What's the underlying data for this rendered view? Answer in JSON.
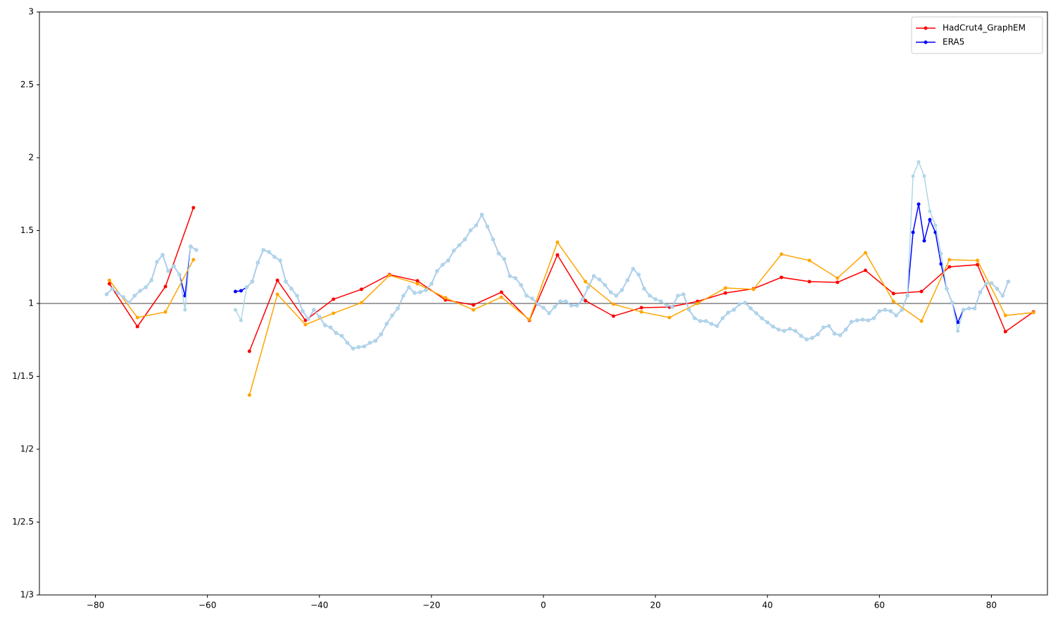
{
  "chart_data": {
    "type": "line",
    "yscale": "ratio",
    "xlim": [
      -90,
      90
    ],
    "ylim": [
      0.333333,
      3
    ],
    "xticks": [
      {
        "value": -80,
        "label": "−80"
      },
      {
        "value": -60,
        "label": "−60"
      },
      {
        "value": -40,
        "label": "−40"
      },
      {
        "value": -20,
        "label": "−20"
      },
      0,
      20,
      40,
      60,
      80
    ],
    "yticks": [
      {
        "value": 0.333333,
        "label": "1/3"
      },
      {
        "value": 0.4,
        "label": "1/2.5"
      },
      {
        "value": 0.5,
        "label": "1/2"
      },
      {
        "value": 0.666667,
        "label": "1/1.5"
      },
      1,
      1.5,
      2,
      2.5,
      3
    ],
    "hline": 1,
    "hline_color": "#808080",
    "legend": "upper right",
    "series": [
      {
        "name": "HadCrut4_GraphEM",
        "color": "#ff0000",
        "x": [
          -77.5,
          -72.5,
          -67.5,
          -62.5,
          -57.5,
          -52.5,
          -47.5,
          -42.5,
          -37.5,
          -32.5,
          -27.5,
          -22.5,
          -17.5,
          -12.5,
          -7.5,
          -2.5,
          2.5,
          7.5,
          12.5,
          17.5,
          22.5,
          27.5,
          32.5,
          37.5,
          42.5,
          47.5,
          52.5,
          57.5,
          62.5,
          67.5,
          72.5,
          77.5,
          82.5,
          87.5
        ],
        "values": [
          1.135,
          0.863,
          1.116,
          1.657,
          null,
          0.753,
          1.159,
          0.896,
          1.029,
          1.097,
          1.198,
          1.155,
          1.024,
          0.99,
          1.077,
          0.896,
          1.333,
          1.019,
          0.92,
          0.972,
          0.976,
          1.014,
          1.072,
          1.101,
          1.179,
          1.15,
          1.145,
          1.227,
          1.068,
          1.082,
          1.251,
          1.266,
          0.838,
          0.945
        ]
      },
      {
        "name": "ERA5",
        "color": "#0000ff",
        "x": [
          -78,
          -77,
          -76,
          -75,
          -74,
          -73,
          -72,
          -71,
          -70,
          -69,
          -68,
          -67,
          -66,
          -65,
          -64,
          -63,
          -62,
          -58,
          -55,
          -54,
          -53,
          -52,
          -51,
          -50,
          -49,
          -48,
          -47,
          -46,
          -45,
          -44,
          -43,
          -42,
          -41,
          -40,
          -39,
          -38,
          -37,
          -36,
          -35,
          -34,
          -33,
          -32,
          -31,
          -30,
          -29,
          -28,
          -27,
          -26,
          -25,
          -24,
          -23,
          -22,
          -21,
          -20,
          -19,
          -18,
          -17,
          -16,
          -15,
          -14,
          -13,
          -12,
          -11,
          -10,
          -9,
          -8,
          -7,
          -6,
          -5,
          -4,
          -3,
          -2,
          -1,
          0,
          1,
          2,
          3,
          4,
          5,
          6,
          7,
          8,
          9,
          10,
          11,
          12,
          13,
          14,
          15,
          16,
          17,
          18,
          19,
          20,
          21,
          22,
          23,
          24,
          25,
          26,
          27,
          28,
          29,
          30,
          31,
          32,
          33,
          34,
          35,
          36,
          37,
          38,
          39,
          40,
          41,
          42,
          43,
          44,
          45,
          46,
          47,
          48,
          49,
          50,
          51,
          52,
          53,
          54,
          55,
          56,
          57,
          58,
          59,
          60,
          61,
          62,
          63,
          64,
          65,
          66,
          67,
          68,
          69,
          70,
          71,
          72,
          73,
          74,
          75,
          76,
          77,
          78,
          79,
          80,
          81,
          82,
          83
        ],
        "values": [
          1.063,
          1.101,
          1.072,
          1.043,
          1.005,
          1.053,
          1.087,
          1.111,
          1.159,
          1.285,
          1.333,
          1.222,
          1.256,
          1.198,
          1.053,
          1.391,
          1.367,
          null,
          1.082,
          1.087,
          1.111,
          1.15,
          1.28,
          1.367,
          1.353,
          1.319,
          1.295,
          1.15,
          1.101,
          1.053,
          0.95,
          0.904,
          0.958,
          0.916,
          0.87,
          0.859,
          0.831,
          0.818,
          0.787,
          0.764,
          0.77,
          0.772,
          0.787,
          0.796,
          0.825,
          0.877,
          0.924,
          0.967,
          1.053,
          1.111,
          1.072,
          1.077,
          1.092,
          1.135,
          1.222,
          1.266,
          1.295,
          1.362,
          1.401,
          1.44,
          1.502,
          1.536,
          1.609,
          1.527,
          1.44,
          1.343,
          1.304,
          1.188,
          1.174,
          1.126,
          1.053,
          1.034,
          0.995,
          0.972,
          0.937,
          0.976,
          1.014,
          1.014,
          0.986,
          0.986,
          1.029,
          1.111,
          1.188,
          1.164,
          1.126,
          1.077,
          1.053,
          1.092,
          1.159,
          1.237,
          1.198,
          1.101,
          1.053,
          1.029,
          1.014,
          0.986,
          0.976,
          1.053,
          1.063,
          0.958,
          0.908,
          0.892,
          0.892,
          0.877,
          0.866,
          0.908,
          0.941,
          0.958,
          0.995,
          1.005,
          0.967,
          0.937,
          0.908,
          0.885,
          0.863,
          0.848,
          0.841,
          0.852,
          0.841,
          0.818,
          0.802,
          0.809,
          0.825,
          0.859,
          0.866,
          0.828,
          0.821,
          0.848,
          0.888,
          0.896,
          0.9,
          0.896,
          0.908,
          0.95,
          0.958,
          0.95,
          0.924,
          0.958,
          1.053,
          1.488,
          1.681,
          1.43,
          1.575,
          1.488,
          1.271,
          1.101,
          1.005,
          0.885,
          0.958,
          0.967,
          0.967,
          1.077,
          1.135,
          1.14,
          1.101,
          1.053,
          1.15
        ]
      },
      {
        "color": "#ffa500",
        "x": [
          -77.5,
          -72.5,
          -67.5,
          -62.5,
          -57.5,
          -52.5,
          -47.5,
          -42.5,
          -37.5,
          -32.5,
          -27.5,
          -22.5,
          -17.5,
          -12.5,
          -7.5,
          -2.5,
          2.5,
          7.5,
          12.5,
          17.5,
          22.5,
          27.5,
          32.5,
          37.5,
          42.5,
          47.5,
          52.5,
          57.5,
          62.5,
          67.5,
          72.5,
          77.5,
          82.5,
          87.5
        ],
        "values": [
          1.159,
          0.912,
          0.945,
          1.3,
          null,
          0.614,
          1.063,
          0.873,
          0.937,
          1.005,
          1.193,
          1.135,
          1.039,
          0.958,
          1.043,
          0.9,
          1.42,
          1.15,
          0.995,
          0.945,
          0.912,
          1,
          1.106,
          1.097,
          1.338,
          1.295,
          1.174,
          1.348,
          1.014,
          0.892,
          1.3,
          1.295,
          0.924,
          0.941
        ]
      },
      {
        "color": "#add8e6",
        "x": [
          -78,
          -77,
          -76,
          -75,
          -74,
          -73,
          -72,
          -71,
          -70,
          -69,
          -68,
          -67,
          -66,
          -65,
          -64,
          -63,
          -62,
          -58,
          -55,
          -54,
          -53,
          -52,
          -51,
          -50,
          -49,
          -48,
          -47,
          -46,
          -45,
          -44,
          -43,
          -42,
          -41,
          -40,
          -39,
          -38,
          -37,
          -36,
          -35,
          -34,
          -33,
          -32,
          -31,
          -30,
          -29,
          -28,
          -27,
          -26,
          -25,
          -24,
          -23,
          -22,
          -21,
          -20,
          -19,
          -18,
          -17,
          -16,
          -15,
          -14,
          -13,
          -12,
          -11,
          -10,
          -9,
          -8,
          -7,
          -6,
          -5,
          -4,
          -3,
          -2,
          -1,
          0,
          1,
          2,
          3,
          4,
          5,
          6,
          7,
          8,
          9,
          10,
          11,
          12,
          13,
          14,
          15,
          16,
          17,
          18,
          19,
          20,
          21,
          22,
          23,
          24,
          25,
          26,
          27,
          28,
          29,
          30,
          31,
          32,
          33,
          34,
          35,
          36,
          37,
          38,
          39,
          40,
          41,
          42,
          43,
          44,
          45,
          46,
          47,
          48,
          49,
          50,
          51,
          52,
          53,
          54,
          55,
          56,
          57,
          58,
          59,
          60,
          61,
          62,
          63,
          64,
          65,
          66,
          67,
          68,
          69,
          70,
          71,
          72,
          73,
          74,
          75,
          76,
          77,
          78,
          79,
          80,
          81,
          82,
          83
        ],
        "values": [
          1.063,
          1.101,
          1.072,
          1.043,
          1.005,
          1.053,
          1.087,
          1.111,
          1.159,
          1.285,
          1.333,
          1.222,
          1.256,
          1.198,
          0.958,
          1.391,
          1.367,
          null,
          0.958,
          0.896,
          1.111,
          1.15,
          1.28,
          1.367,
          1.353,
          1.319,
          1.295,
          1.15,
          1.101,
          1.053,
          0.95,
          0.904,
          0.958,
          0.916,
          0.87,
          0.859,
          0.831,
          0.818,
          0.787,
          0.764,
          0.77,
          0.772,
          0.787,
          0.796,
          0.825,
          0.877,
          0.924,
          0.967,
          1.053,
          1.111,
          1.072,
          1.077,
          1.092,
          1.135,
          1.222,
          1.266,
          1.295,
          1.362,
          1.401,
          1.44,
          1.502,
          1.536,
          1.609,
          1.527,
          1.44,
          1.343,
          1.304,
          1.188,
          1.174,
          1.126,
          1.053,
          1.034,
          0.995,
          0.972,
          0.937,
          0.976,
          1.014,
          1.014,
          0.986,
          0.986,
          1.029,
          1.111,
          1.188,
          1.164,
          1.126,
          1.077,
          1.053,
          1.092,
          1.159,
          1.237,
          1.198,
          1.101,
          1.053,
          1.029,
          1.014,
          0.986,
          0.976,
          1.053,
          1.063,
          0.958,
          0.908,
          0.892,
          0.892,
          0.877,
          0.866,
          0.908,
          0.941,
          0.958,
          0.995,
          1.005,
          0.967,
          0.937,
          0.908,
          0.885,
          0.863,
          0.848,
          0.841,
          0.852,
          0.841,
          0.818,
          0.802,
          0.809,
          0.825,
          0.859,
          0.866,
          0.828,
          0.821,
          0.848,
          0.888,
          0.896,
          0.9,
          0.896,
          0.908,
          0.95,
          0.958,
          0.95,
          0.924,
          0.958,
          1.053,
          1.874,
          1.971,
          1.874,
          1.633,
          1.536,
          1.343,
          1.101,
          1.005,
          0.841,
          0.958,
          0.967,
          0.967,
          1.077,
          1.135,
          1.14,
          1.101,
          1.053,
          1.15
        ]
      }
    ]
  }
}
